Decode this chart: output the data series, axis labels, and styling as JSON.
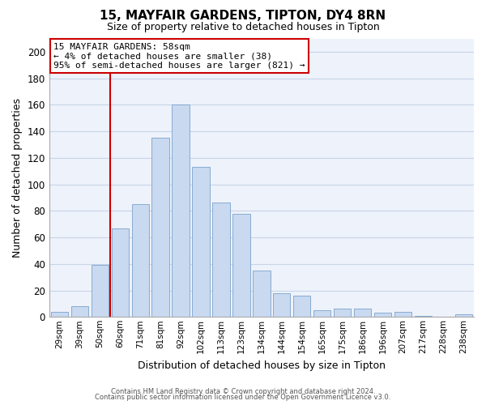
{
  "title": "15, MAYFAIR GARDENS, TIPTON, DY4 8RN",
  "subtitle": "Size of property relative to detached houses in Tipton",
  "xlabel": "Distribution of detached houses by size in Tipton",
  "ylabel": "Number of detached properties",
  "bar_labels": [
    "29sqm",
    "39sqm",
    "50sqm",
    "60sqm",
    "71sqm",
    "81sqm",
    "92sqm",
    "102sqm",
    "113sqm",
    "123sqm",
    "134sqm",
    "144sqm",
    "154sqm",
    "165sqm",
    "175sqm",
    "186sqm",
    "196sqm",
    "207sqm",
    "217sqm",
    "228sqm",
    "238sqm"
  ],
  "bar_values": [
    4,
    8,
    39,
    67,
    85,
    135,
    160,
    113,
    86,
    78,
    35,
    18,
    16,
    5,
    6,
    6,
    3,
    4,
    1,
    0,
    2
  ],
  "bar_color": "#c8d9f0",
  "bar_edge_color": "#7ba3cc",
  "vline_x_index": 2.5,
  "vline_color": "#cc0000",
  "ylim": [
    0,
    210
  ],
  "yticks": [
    0,
    20,
    40,
    60,
    80,
    100,
    120,
    140,
    160,
    180,
    200
  ],
  "annotation_title": "15 MAYFAIR GARDENS: 58sqm",
  "annotation_line1": "← 4% of detached houses are smaller (38)",
  "annotation_line2": "95% of semi-detached houses are larger (821) →",
  "annotation_box_color": "#ffffff",
  "annotation_box_edge": "#cc0000",
  "footer_line1": "Contains HM Land Registry data © Crown copyright and database right 2024.",
  "footer_line2": "Contains public sector information licensed under the Open Government Licence v3.0.",
  "grid_color": "#c8d4e8",
  "bg_color": "#eef2fa"
}
